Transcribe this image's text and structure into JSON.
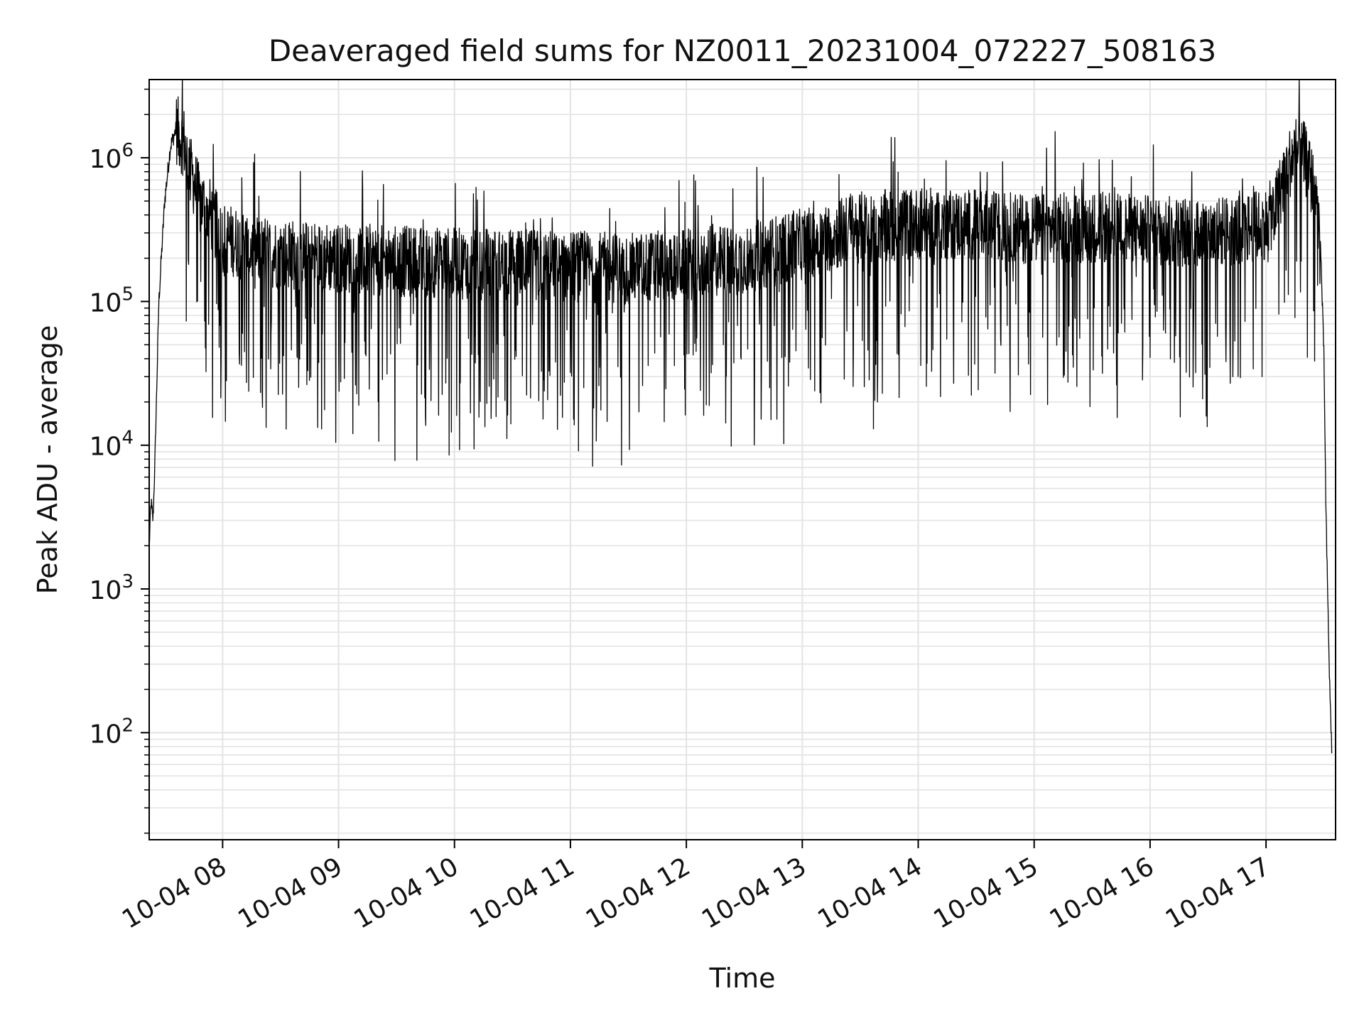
{
  "chart_data": {
    "type": "line",
    "title": "Deaveraged field sums for NZ0011_20231004_072227_508163",
    "xlabel": "Time",
    "ylabel": "Peak ADU - average",
    "yscale": "log",
    "xlim": [
      "2023-10-04 07:22",
      "2023-10-04 17:36"
    ],
    "ylim": [
      18,
      3500000
    ],
    "grid": true,
    "series_color": "#000000",
    "x_ticks": [
      "10-04 08",
      "10-04 09",
      "10-04 10",
      "10-04 11",
      "10-04 12",
      "10-04 13",
      "10-04 14",
      "10-04 15",
      "10-04 16",
      "10-04 17"
    ],
    "y_ticks": [
      {
        "value": 100,
        "base": "10",
        "exp": "2"
      },
      {
        "value": 1000,
        "base": "10",
        "exp": "3"
      },
      {
        "value": 10000,
        "base": "10",
        "exp": "4"
      },
      {
        "value": 100000,
        "base": "10",
        "exp": "5"
      },
      {
        "value": 1000000,
        "base": "10",
        "exp": "6"
      }
    ],
    "series": [
      {
        "x": [
          "2023-10-04 07:22",
          "2023-10-04 07:23",
          "2023-10-04 07:24",
          "2023-10-04 07:25",
          "2023-10-04 07:27",
          "2023-10-04 07:30",
          "2023-10-04 07:33",
          "2023-10-04 07:36",
          "2023-10-04 07:38",
          "2023-10-04 07:40",
          "2023-10-04 07:42",
          "2023-10-04 07:45",
          "2023-10-04 07:48",
          "2023-10-04 07:52",
          "2023-10-04 07:56",
          "2023-10-04 08:00",
          "2023-10-04 08:10",
          "2023-10-04 08:20",
          "2023-10-04 08:40",
          "2023-10-04 09:00",
          "2023-10-04 09:30",
          "2023-10-04 10:00",
          "2023-10-04 10:30",
          "2023-10-04 11:00",
          "2023-10-04 11:30",
          "2023-10-04 12:00",
          "2023-10-04 12:30",
          "2023-10-04 13:00",
          "2023-10-04 13:30",
          "2023-10-04 14:00",
          "2023-10-04 14:30",
          "2023-10-04 15:00",
          "2023-10-04 15:30",
          "2023-10-04 16:00",
          "2023-10-04 16:30",
          "2023-10-04 16:50",
          "2023-10-04 17:00",
          "2023-10-04 17:05",
          "2023-10-04 17:10",
          "2023-10-04 17:15",
          "2023-10-04 17:20",
          "2023-10-04 17:25",
          "2023-10-04 17:28",
          "2023-10-04 17:30",
          "2023-10-04 17:31",
          "2023-10-04 17:32",
          "2023-10-04 17:33",
          "2023-10-04 17:34"
        ],
        "y": [
          2000,
          4000,
          3000,
          8000,
          100000,
          500000,
          1200000,
          1600000,
          1400000,
          1300000,
          900000,
          700000,
          500000,
          450000,
          350000,
          280000,
          250000,
          220000,
          210000,
          200000,
          190000,
          185000,
          180000,
          175000,
          170000,
          180000,
          200000,
          250000,
          330000,
          350000,
          340000,
          320000,
          330000,
          310000,
          300000,
          320000,
          350000,
          450000,
          800000,
          1100000,
          1000000,
          600000,
          300000,
          40000,
          3500,
          800,
          200,
          80
        ]
      }
    ]
  }
}
